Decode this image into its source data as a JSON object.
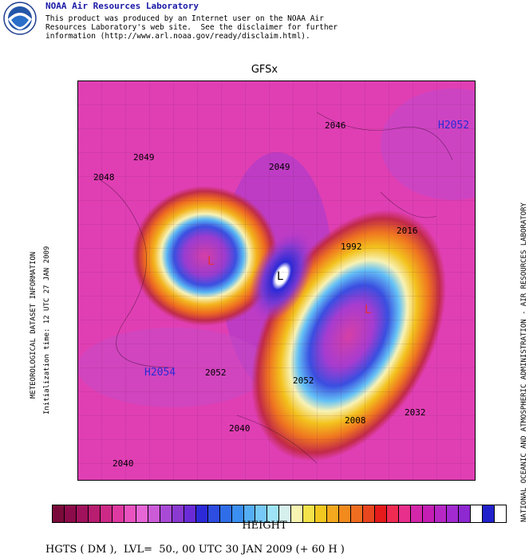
{
  "header": {
    "org_title": "NOAA Air Resources Laboratory",
    "logo_text": "NOAA",
    "disclaimer_line1": "This product was produced by an Internet user on the NOAA Air",
    "disclaimer_line2": "Resources Laboratory's web site.  See the disclaimer for further",
    "disclaimer_line3": "information (http://www.arl.noaa.gov/ready/disclaim.html)."
  },
  "map": {
    "model_title": "GFSx",
    "left_vertical_1": "METEOROLOGICAL DATASET INFORMATION",
    "left_vertical_2": "Initialization time: 12 UTC 27 JAN 2009",
    "right_vertical": "NATIONAL OCEANIC AND ATMOSPHERIC ADMINISTRATION - AIR RESOURCES LABORATORY",
    "lows": [
      "L",
      "L",
      "L"
    ],
    "highs": [
      "H2052",
      "H2054"
    ],
    "contour_labels": [
      "2046",
      "2049",
      "2048",
      "2049",
      "2052",
      "2040",
      "2016",
      "2008",
      "1992",
      "2032",
      "2040",
      "2052"
    ]
  },
  "colorbar": {
    "colors": [
      "#7a0a3a",
      "#8c0b4a",
      "#a0125c",
      "#b81d70",
      "#cc2a86",
      "#de39a0",
      "#ea52bf",
      "#e666d6",
      "#cc5bd8",
      "#a94ad6",
      "#8a3ad0",
      "#6a2bd6",
      "#2c2ad8",
      "#2d4ce0",
      "#2f6ee8",
      "#3b8ff0",
      "#55aef4",
      "#77c9f7",
      "#9ee3f7",
      "#d6f0ee",
      "#f7f3b0",
      "#f3e24a",
      "#f2c71f",
      "#f3a81d",
      "#f28a1e",
      "#ef6d20",
      "#e8461f",
      "#e51a1a",
      "#ef2b52",
      "#e82f8c",
      "#d326a9",
      "#c41eb4",
      "#b627c5",
      "#a22ad0",
      "#8e28d1",
      "#ffffff",
      "#2222cc",
      "#ffffff"
    ]
  },
  "footer": {
    "field_name": "HEIGHT",
    "caption": "HGTS ( DM ),  LVL=  50., 00 UTC 30 JAN 2009 (+ 60 H )"
  }
}
